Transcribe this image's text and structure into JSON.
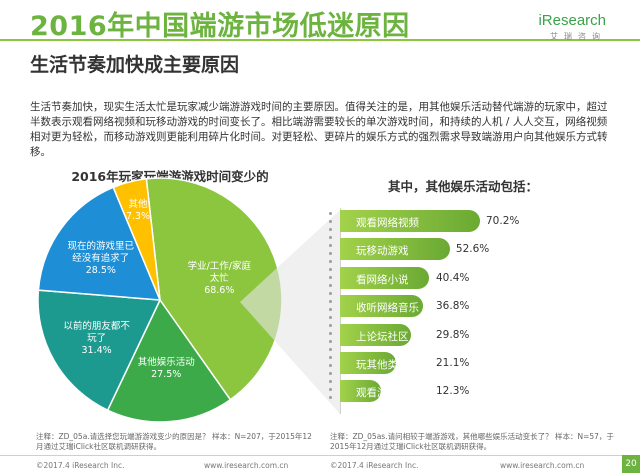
{
  "header": {
    "title": "2016年中国端游市场低迷原因",
    "subtitle": "生活节奏加快成主要原因",
    "logo": "iResearch",
    "logo_sub": "艾瑞咨询"
  },
  "description": "生活节奏加快，现实生活太忙是玩家减少端游游戏时间的主要原因。值得关注的是，用其他娱乐活动替代端游的玩家中，超过半数表示观看网络视频和玩移动游戏的时间变长了。相比端游需要较长的单次游戏时间，和持续的人机 / 人人交互，网络视频相对更为轻松，而移动游戏则更能利用碎片化时间。对更轻松、更碎片的娱乐方式的强烈需求导致端游用户向其他娱乐方式转移。",
  "chart_data": [
    {
      "type": "pie",
      "title": "2016年玩家玩端游游戏时间变少的原因",
      "categories": [
        "学业/工作/家庭太忙",
        "其他娱乐活动",
        "以前的朋友都不玩了",
        "现在的游戏里已经没有追求了",
        "其他"
      ],
      "values": [
        68.6,
        27.5,
        31.4,
        28.5,
        7.3
      ],
      "colors": [
        "#8cc63f",
        "#3daa4a",
        "#1d9a8f",
        "#1e8fd6",
        "#ffc000"
      ]
    },
    {
      "type": "bar",
      "title": "其中，其他娱乐活动包括：",
      "categories": [
        "观看网络视频",
        "玩移动游戏",
        "看网络小说",
        "收听网络音乐",
        "上论坛社区",
        "玩其他类型游戏",
        "观看游戏直播"
      ],
      "values": [
        70.2,
        52.6,
        40.4,
        36.8,
        29.8,
        21.1,
        12.3
      ]
    }
  ],
  "notes": {
    "left": "注释：ZD_05a.请选择您玩端游游戏变少的原因是？\n样本：N=207，于2015年12月通过艾瑞iClick社区联机调研获得。",
    "right": "注释：ZD_05as.请问相较于端游游戏，其他哪些娱乐活动变长了？\n样本：N=57，于2015年12月通过艾瑞iClick社区联机调研获得。"
  },
  "footer": {
    "left_copy": "©2017.4 iResearch Inc.",
    "left_url": "www.iresearch.com.cn",
    "right_copy": "©2017.4 iResearch Inc.",
    "right_url": "www.iresearch.com.cn",
    "page": "20"
  }
}
